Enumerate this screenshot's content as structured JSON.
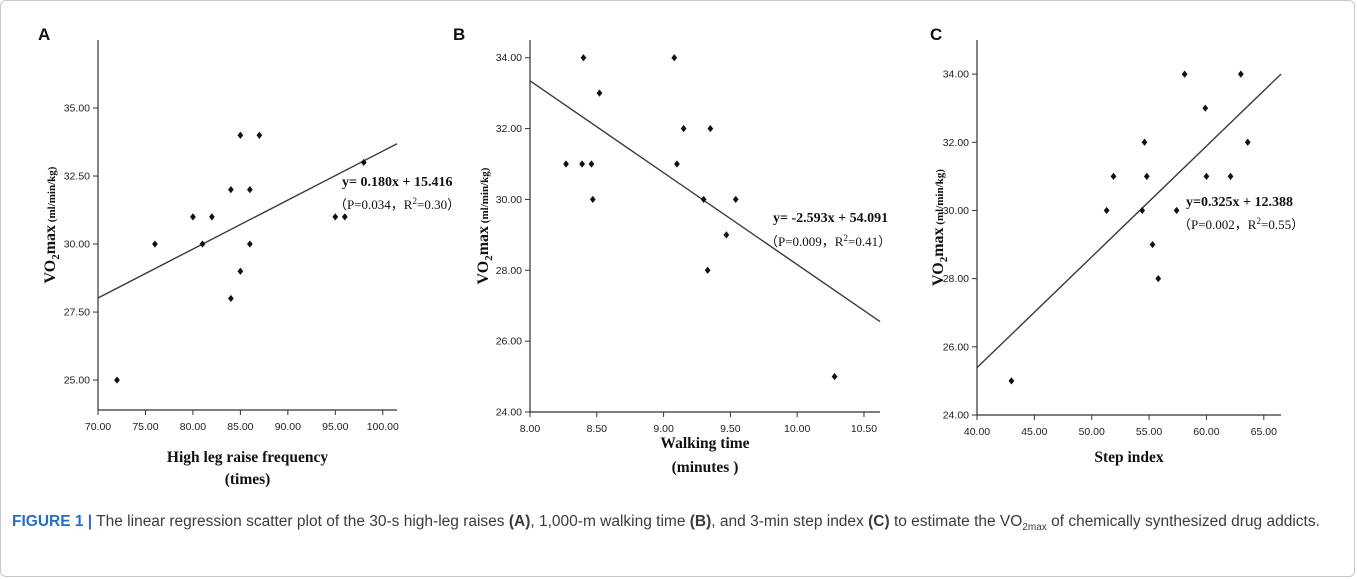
{
  "chart_data": [
    {
      "type": "scatter",
      "panel": "A",
      "xlabel": [
        "High leg raise frequency",
        "(times)"
      ],
      "ylabel": [
        "VO",
        "2",
        "max",
        " (ml/min/kg)"
      ],
      "xlim": [
        70,
        101.5
      ],
      "ylim": [
        23.9,
        37.5
      ],
      "xticks": [
        "70.00",
        "75.00",
        "80.00",
        "85.00",
        "90.00",
        "95.00",
        "100.00"
      ],
      "yticks": [
        "25.00",
        "27.50",
        "30.00",
        "32.50",
        "35.00"
      ],
      "points": [
        [
          72,
          25
        ],
        [
          76,
          30
        ],
        [
          80,
          31
        ],
        [
          81,
          30
        ],
        [
          82,
          31
        ],
        [
          84,
          28
        ],
        [
          84,
          32
        ],
        [
          85,
          29
        ],
        [
          85,
          34
        ],
        [
          86,
          30
        ],
        [
          86,
          32
        ],
        [
          87,
          34
        ],
        [
          95,
          31
        ],
        [
          96,
          31
        ],
        [
          98,
          33
        ]
      ],
      "fit": {
        "slope": 0.18,
        "intercept": 15.416
      },
      "annotation": [
        "y= 0.180x + 15.416",
        "（P=0.034，R",
        "2",
        "=0.30）"
      ]
    },
    {
      "type": "scatter",
      "panel": "B",
      "xlabel": [
        "Walking time",
        "(minutes )"
      ],
      "ylabel": [
        "VO",
        "2",
        "max",
        " (ml/min/kg)"
      ],
      "xlim": [
        8.0,
        10.62
      ],
      "ylim": [
        24.0,
        34.5
      ],
      "xticks": [
        "8.00",
        "8.50",
        "9.00",
        "9.50",
        "10.00",
        "10.50"
      ],
      "yticks": [
        "24.00",
        "26.00",
        "28.00",
        "30.00",
        "32.00",
        "34.00"
      ],
      "points": [
        [
          8.27,
          31
        ],
        [
          8.39,
          31
        ],
        [
          8.4,
          34
        ],
        [
          8.46,
          31
        ],
        [
          8.47,
          30
        ],
        [
          8.52,
          33
        ],
        [
          9.08,
          34
        ],
        [
          9.1,
          31
        ],
        [
          9.15,
          32
        ],
        [
          9.3,
          30
        ],
        [
          9.33,
          28
        ],
        [
          9.35,
          32
        ],
        [
          9.47,
          29
        ],
        [
          9.54,
          30
        ],
        [
          10.28,
          25
        ]
      ],
      "fit": {
        "slope": -2.593,
        "intercept": 54.091
      },
      "annotation": [
        "y= -2.593x + 54.091",
        "（P=0.009，R",
        "2",
        "=0.41）"
      ]
    },
    {
      "type": "scatter",
      "panel": "C",
      "xlabel": [
        "Step index"
      ],
      "ylabel": [
        "VO",
        "2",
        "max",
        " (ml/min/kg)"
      ],
      "xlim": [
        40,
        66.5
      ],
      "ylim": [
        24.0,
        35.0
      ],
      "xticks": [
        "40.00",
        "45.00",
        "50.00",
        "55.00",
        "60.00",
        "65.00"
      ],
      "yticks": [
        "24.00",
        "26.00",
        "28.00",
        "30.00",
        "32.00",
        "34.00"
      ],
      "points": [
        [
          43,
          25
        ],
        [
          51.3,
          30
        ],
        [
          51.9,
          31
        ],
        [
          54.4,
          30
        ],
        [
          54.6,
          32
        ],
        [
          54.8,
          31
        ],
        [
          55.3,
          29
        ],
        [
          55.8,
          28
        ],
        [
          57.4,
          30
        ],
        [
          58.1,
          34
        ],
        [
          59.9,
          33
        ],
        [
          60.0,
          31
        ],
        [
          62.1,
          31
        ],
        [
          63.0,
          34
        ],
        [
          63.6,
          32
        ]
      ],
      "fit": {
        "slope": 0.325,
        "intercept": 12.388
      },
      "annotation": [
        "y=0.325x + 12.388",
        "（P=0.002，R",
        "2",
        "=0.55）"
      ]
    }
  ],
  "caption": {
    "label": "FIGURE 1 |",
    "text_1": " The linear regression scatter plot of the 30-s high-leg raises ",
    "ref_a": "(A)",
    "text_2": ", 1,000-m walking time ",
    "ref_b": "(B)",
    "text_3": ", and 3-min step index ",
    "ref_c": "(C)",
    "text_4": " to estimate the VO",
    "sub": "2max",
    "text_5": " of chemically synthesized drug addicts."
  }
}
